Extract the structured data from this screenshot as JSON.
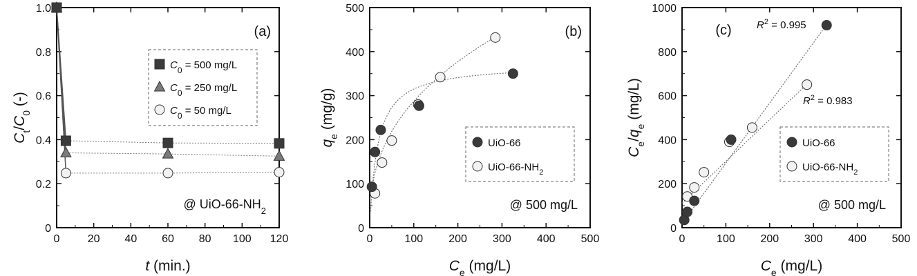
{
  "chart_data": [
    {
      "type": "scatter",
      "panel_label": "(a)",
      "xlabel": "t (min.)",
      "ylabel": "Ct/C0 (-)",
      "xlim": [
        0,
        120
      ],
      "ylim": [
        0,
        1.0
      ],
      "xticks": [
        "0",
        "20",
        "40",
        "60",
        "80",
        "100",
        "120"
      ],
      "yticks": [
        "0",
        "0.2",
        "0.4",
        "0.6",
        "0.8",
        "1.0"
      ],
      "annotation": "@ UiO-66-NH2",
      "legend_position": "upper-right (boxed, dashed)",
      "series": [
        {
          "name": "C0 = 500 mg/L",
          "marker": "square",
          "color": "#3a3a3a",
          "x": [
            0,
            5,
            60,
            120
          ],
          "y": [
            1.0,
            0.395,
            0.385,
            0.383
          ]
        },
        {
          "name": "C0 = 250 mg/L",
          "marker": "triangle",
          "color": "#7a7a7a",
          "x": [
            0,
            5,
            60,
            120
          ],
          "y": [
            1.0,
            0.34,
            0.335,
            0.325
          ]
        },
        {
          "name": "C0 = 50 mg/L",
          "marker": "circle",
          "color": "#f2f2f2",
          "x": [
            0,
            5,
            60,
            120
          ],
          "y": [
            1.0,
            0.248,
            0.248,
            0.252
          ]
        }
      ]
    },
    {
      "type": "scatter",
      "panel_label": "(b)",
      "xlabel": "Ce (mg/L)",
      "ylabel": "qe (mg/g)",
      "xlim": [
        0,
        500
      ],
      "ylim": [
        0,
        500
      ],
      "xticks": [
        "0",
        "100",
        "200",
        "300",
        "400",
        "500"
      ],
      "yticks": [
        "0",
        "100",
        "200",
        "300",
        "400",
        "500"
      ],
      "annotation": "@ 500 mg/L",
      "legend_position": "right (boxed, dashed)",
      "series": [
        {
          "name": "UiO-66",
          "marker": "circle",
          "color": "#3a3a3a",
          "x": [
            5,
            12,
            25,
            112,
            325
          ],
          "y": [
            93,
            172,
            222,
            277,
            350
          ]
        },
        {
          "name": "UiO-66-NH2",
          "marker": "circle",
          "color": "#f2f2f2",
          "x": [
            12,
            28,
            50,
            110,
            160,
            285
          ],
          "y": [
            78,
            148,
            198,
            280,
            342,
            432
          ]
        }
      ]
    },
    {
      "type": "scatter",
      "panel_label": "(c)",
      "xlabel": "Ce (mg/L)",
      "ylabel": "Ce/qe (mg/L)",
      "xlim": [
        0,
        500
      ],
      "ylim": [
        0,
        1000
      ],
      "xticks": [
        "0",
        "100",
        "200",
        "300",
        "400",
        "500"
      ],
      "yticks": [
        "0",
        "200",
        "400",
        "600",
        "800",
        "1000"
      ],
      "annotation": "@ 500 mg/L",
      "legend_position": "right (boxed, dashed)",
      "r2_labels": [
        "R2 = 0.995",
        "R2 = 0.983"
      ],
      "series": [
        {
          "name": "UiO-66",
          "marker": "circle",
          "color": "#3a3a3a",
          "x": [
            5,
            12,
            28,
            112,
            330
          ],
          "y": [
            35,
            72,
            122,
            400,
            920
          ]
        },
        {
          "name": "UiO-66-NH2",
          "marker": "circle",
          "color": "#f2f2f2",
          "x": [
            12,
            28,
            50,
            108,
            160,
            285
          ],
          "y": [
            142,
            183,
            252,
            390,
            455,
            650
          ]
        }
      ]
    }
  ]
}
